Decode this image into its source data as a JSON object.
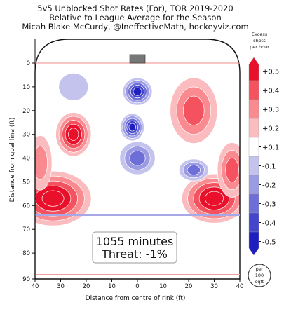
{
  "chart_data": {
    "type": "heatmap",
    "title_lines": [
      "5v5 Unblocked Shot Rates (For), TOR 2019-2020",
      "Relative to League Average for the Season",
      "Micah Blake McCurdy, @IneffectiveMath, hockeyviz.com"
    ],
    "xlabel": "Distance from centre of rink (ft)",
    "ylabel": "Distance from goal line (ft)",
    "x_ticks": [
      "40",
      "30",
      "20",
      "10",
      "0",
      "10",
      "20",
      "30",
      "40"
    ],
    "y_ticks": [
      "0",
      "10",
      "20",
      "30",
      "40",
      "50",
      "60",
      "70",
      "80",
      "90"
    ],
    "xlim": [
      -40,
      40
    ],
    "ylim": [
      90,
      0
    ],
    "colorbar": {
      "title_lines": [
        "Excess",
        "shots",
        "per hour"
      ],
      "labels": [
        "+0.5",
        "+0.4",
        "+0.3",
        "+0.2",
        "+0.1",
        "-0.1",
        "-0.2",
        "-0.3",
        "-0.4",
        "-0.5"
      ],
      "colors": [
        "#e8102a",
        "#f3525e",
        "#f88a90",
        "#fbbcbf",
        "#ffffff",
        "#c3c3ee",
        "#9b9be3",
        "#6e6ed8",
        "#4545cc",
        "#1f1fbf"
      ]
    },
    "regions": [
      {
        "x": -25,
        "y": 30,
        "rx": 6,
        "ry": 8,
        "value": 0.5
      },
      {
        "x": -33,
        "y": 57,
        "rx": 13,
        "ry": 10,
        "value": 0.5
      },
      {
        "x": 30,
        "y": 57,
        "rx": 11,
        "ry": 9,
        "value": 0.5
      },
      {
        "x": 22,
        "y": 20,
        "rx": 8,
        "ry": 12,
        "value": 0.25
      },
      {
        "x": 37,
        "y": 45,
        "rx": 5,
        "ry": 10,
        "value": 0.3
      },
      {
        "x": -38,
        "y": 42,
        "rx": 4,
        "ry": 10,
        "value": 0.2
      },
      {
        "x": 0,
        "y": 12,
        "rx": 5,
        "ry": 5,
        "value": -0.5
      },
      {
        "x": -2,
        "y": 27,
        "rx": 4,
        "ry": 5,
        "value": -0.45
      },
      {
        "x": 22,
        "y": 45,
        "rx": 5,
        "ry": 4,
        "value": -0.35
      },
      {
        "x": 0,
        "y": 40,
        "rx": 6,
        "ry": 6,
        "value": -0.3
      },
      {
        "x": -25,
        "y": 10,
        "rx": 5,
        "ry": 5,
        "value": -0.15
      }
    ],
    "annotation": {
      "line1": "1055 minutes",
      "line2": "Threat: -1%"
    },
    "per_area_label": [
      "per",
      "100",
      "sqft"
    ]
  }
}
